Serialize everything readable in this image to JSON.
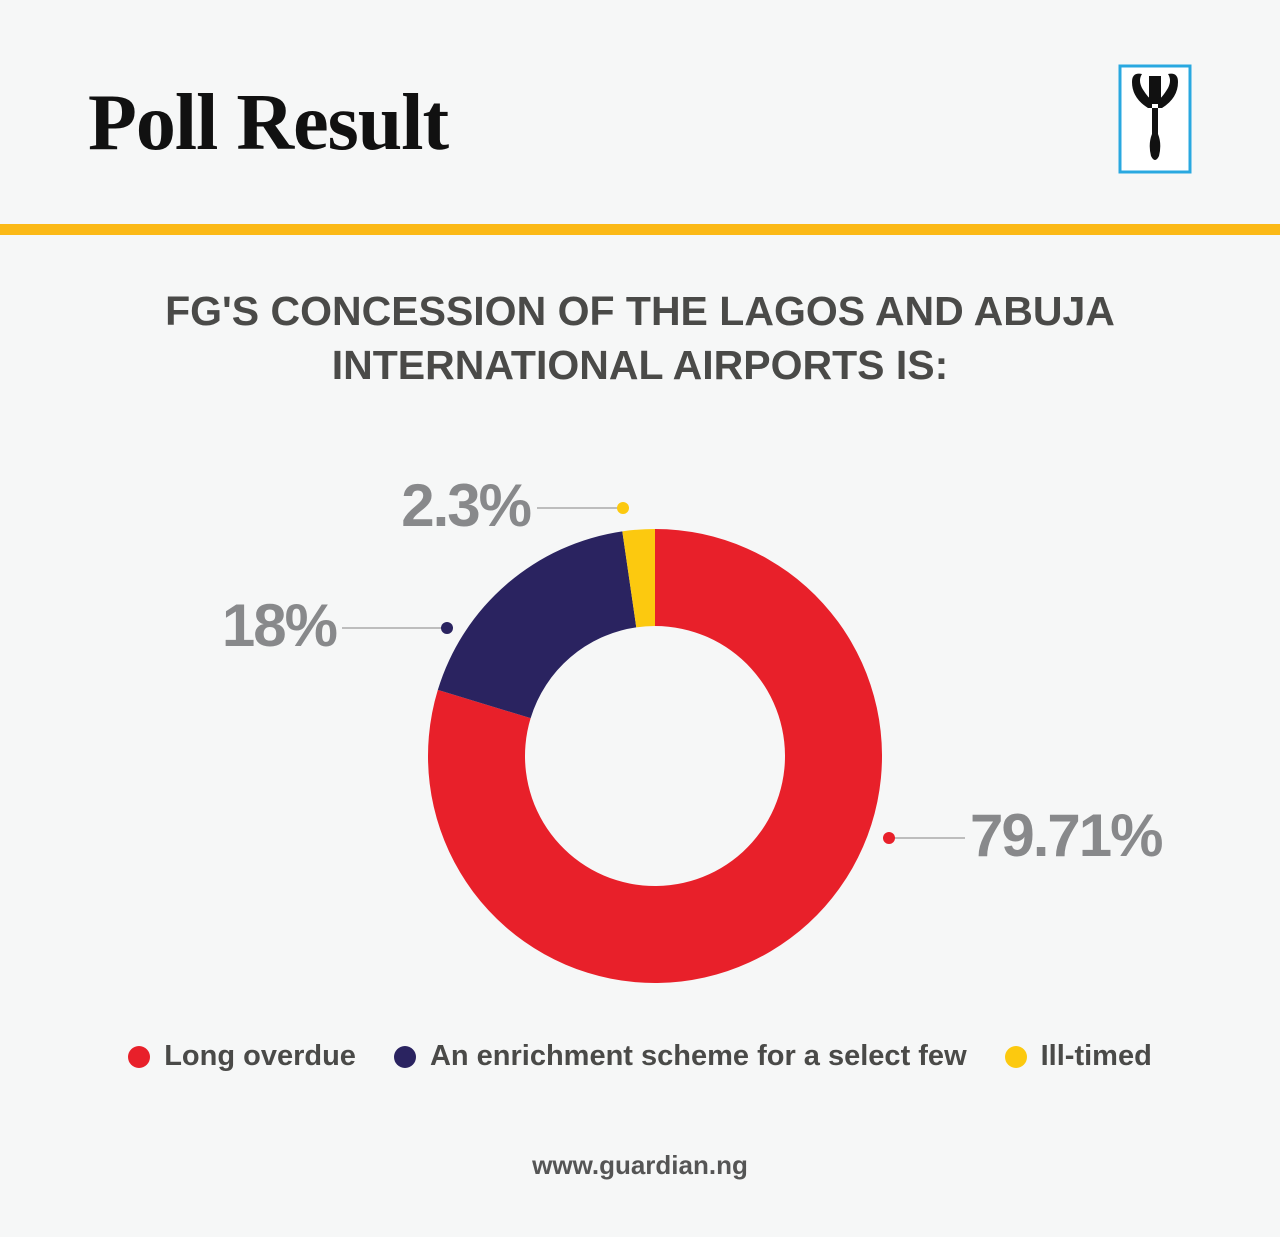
{
  "chart_data": {
    "type": "donut",
    "title": "Poll Result",
    "subtitle": "FG'S CONCESSION OF THE LAGOS AND ABUJA INTERNATIONAL AIRPORTS IS:",
    "categories": [
      "Long overdue",
      "An enrichment scheme for a select few",
      "Ill-timed"
    ],
    "values": [
      79.71,
      18,
      2.3
    ],
    "value_labels": [
      "79.71%",
      "18%",
      "2.3%"
    ],
    "colors": [
      "#e8202a",
      "#2a2360",
      "#fcc90f"
    ],
    "source": "www.guardian.ng"
  }
}
